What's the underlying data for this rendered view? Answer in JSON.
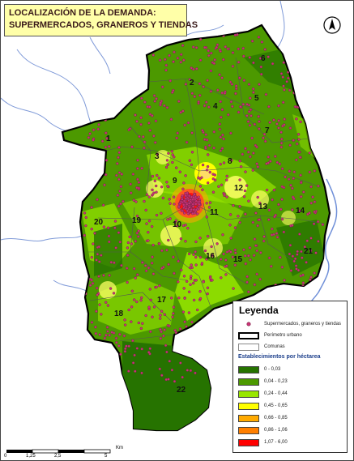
{
  "title": {
    "line1": "LOCALIZACIÓN DE LA DEMANDA:",
    "line2": "SUPERMERCADOS, GRANEROS Y TIENDAS"
  },
  "north_arrow": {
    "icon": "north-arrow-icon"
  },
  "comunas": [
    "1",
    "2",
    "3",
    "4",
    "5",
    "6",
    "7",
    "8",
    "9",
    "10",
    "11",
    "12",
    "13",
    "14",
    "15",
    "16",
    "17",
    "18",
    "19",
    "20",
    "21",
    "22"
  ],
  "legend": {
    "title": "Leyenda",
    "point_label": "Supermercados, graneros y tiendas",
    "perimeter_label": "Perímetro urbano",
    "comunas_label": "Comunas",
    "density_title": "Establecimientos por héctarea",
    "classes": [
      {
        "label": "0 - 0,03",
        "color": "#267300"
      },
      {
        "label": "0,04 - 0,23",
        "color": "#4c9900"
      },
      {
        "label": "0,24 - 0,44",
        "color": "#98e600"
      },
      {
        "label": "0,45 - 0,65",
        "color": "#ffff00"
      },
      {
        "label": "0,66 - 0,85",
        "color": "#ffaa00"
      },
      {
        "label": "0,86 - 1,06",
        "color": "#ff7f00"
      },
      {
        "label": "1,07 - 6,00",
        "color": "#ff0000"
      }
    ]
  },
  "scale_bar": {
    "ticks": [
      "0",
      "1,25",
      "2,5",
      "",
      "5"
    ],
    "unit": "Km"
  },
  "colors": {
    "river": "#6f8fd8",
    "perimeter": "#000000",
    "point": "#cc3377",
    "title_bg": "#ffffa8"
  }
}
